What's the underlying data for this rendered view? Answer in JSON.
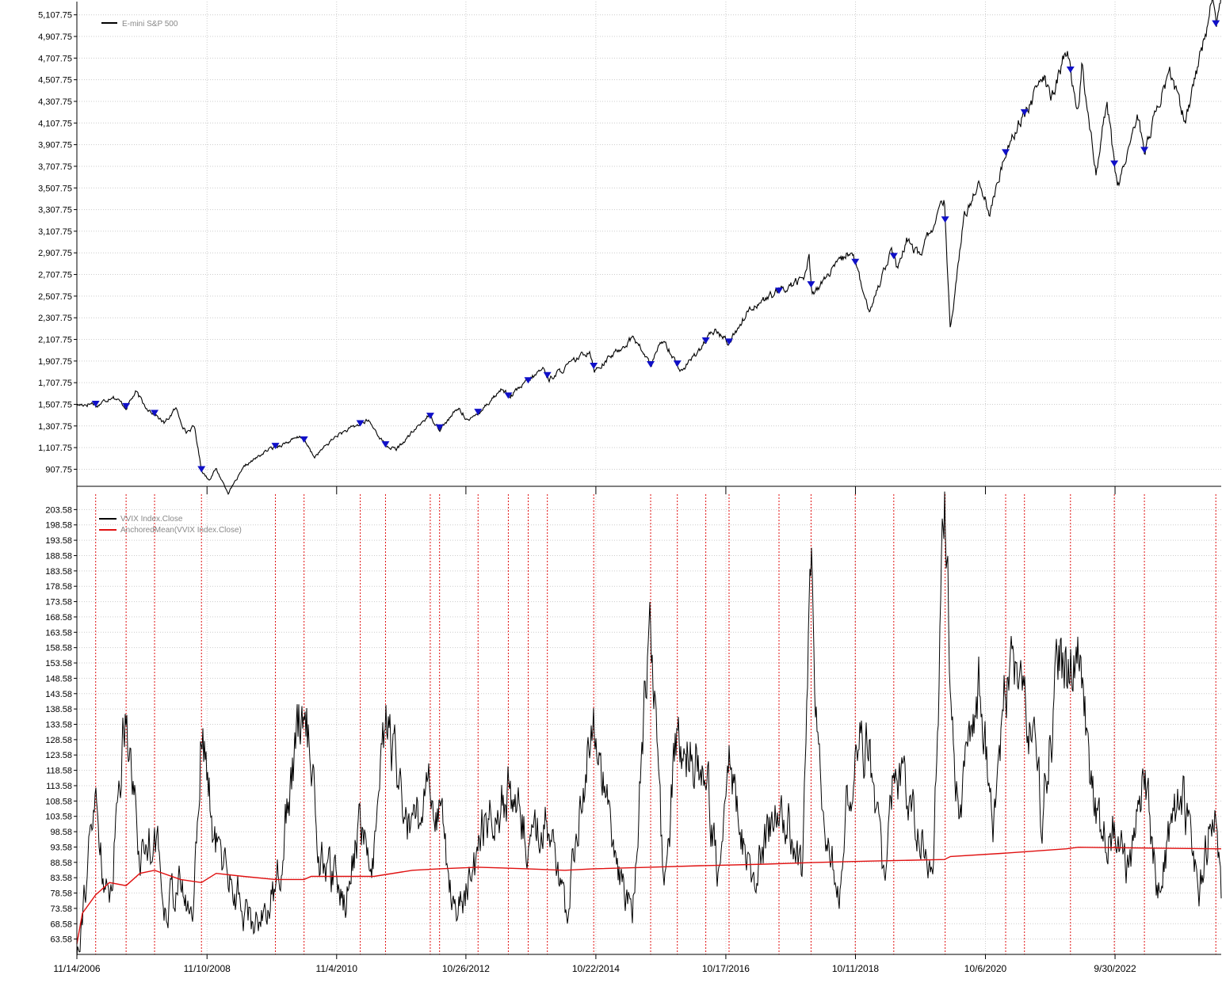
{
  "colors": {
    "price": "#000000",
    "marker": "#1010c8",
    "vvix": "#000000",
    "mean": "#e01010",
    "event_line": "#e01010",
    "grid": "#cccccc"
  },
  "x_axis": {
    "start": "2006-11-14",
    "end": "2024-05-15",
    "tick_dates": [
      "2006-11-14",
      "2008-11-10",
      "2010-11-04",
      "2012-10-26",
      "2014-10-22",
      "2016-10-17",
      "2018-10-11",
      "2020-10-06",
      "2022-09-30"
    ],
    "tick_labels": [
      "11/14/2006",
      "11/10/2008",
      "11/4/2010",
      "10/26/2012",
      "10/22/2014",
      "10/17/2016",
      "10/11/2018",
      "10/6/2020",
      "9/30/2022"
    ]
  },
  "chart_data": [
    {
      "type": "line",
      "legend": [
        "E-mini S&P 500"
      ],
      "ylim": [
        750,
        5230
      ],
      "y_ticks": [
        907.75,
        1107.75,
        1307.75,
        1507.75,
        1707.75,
        1907.75,
        2107.75,
        2307.75,
        2507.75,
        2707.75,
        2907.75,
        3107.75,
        3307.75,
        3507.75,
        3707.75,
        3907.75,
        4107.75,
        4307.75,
        4507.75,
        4707.75,
        4907.75,
        5107.75
      ],
      "y_tick_labels": [
        "907.75",
        "1,107.75",
        "1,307.75",
        "1,507.75",
        "1,707.75",
        "1,907.75",
        "2,107.75",
        "2,307.75",
        "2,507.75",
        "2,707.75",
        "2,907.75",
        "3,107.75",
        "3,307.75",
        "3,507.75",
        "3,707.75",
        "3,907.75",
        "4,107.75",
        "4,307.75",
        "4,507.75",
        "4,707.75",
        "4,907.75",
        "5,107.75"
      ],
      "series": [
        {
          "name": "E-mini S&P 500",
          "points": [
            [
              "2006-11-14",
              1500
            ],
            [
              "2007-02-20",
              1520
            ],
            [
              "2007-03-05",
              1490
            ],
            [
              "2007-06-01",
              1590
            ],
            [
              "2007-08-15",
              1480
            ],
            [
              "2007-10-10",
              1620
            ],
            [
              "2007-11-25",
              1500
            ],
            [
              "2008-01-22",
              1420
            ],
            [
              "2008-03-17",
              1330
            ],
            [
              "2008-05-19",
              1470
            ],
            [
              "2008-07-15",
              1250
            ],
            [
              "2008-09-01",
              1300
            ],
            [
              "2008-10-10",
              900
            ],
            [
              "2008-11-20",
              810
            ],
            [
              "2008-12-30",
              910
            ],
            [
              "2009-03-09",
              690
            ],
            [
              "2009-06-12",
              940
            ],
            [
              "2009-10-20",
              1090
            ],
            [
              "2010-04-23",
              1210
            ],
            [
              "2010-07-02",
              1020
            ],
            [
              "2010-11-04",
              1220
            ],
            [
              "2011-04-29",
              1360
            ],
            [
              "2011-08-08",
              1120
            ],
            [
              "2011-10-04",
              1090
            ],
            [
              "2012-04-02",
              1410
            ],
            [
              "2012-06-04",
              1280
            ],
            [
              "2012-09-14",
              1470
            ],
            [
              "2012-11-15",
              1350
            ],
            [
              "2013-05-21",
              1660
            ],
            [
              "2013-06-24",
              1570
            ],
            [
              "2013-12-31",
              1840
            ],
            [
              "2014-02-03",
              1740
            ],
            [
              "2014-09-18",
              2010
            ],
            [
              "2014-10-15",
              1820
            ],
            [
              "2015-05-21",
              2130
            ],
            [
              "2015-08-24",
              1870
            ],
            [
              "2015-11-03",
              2110
            ],
            [
              "2016-02-11",
              1810
            ],
            [
              "2016-08-15",
              2190
            ],
            [
              "2016-11-04",
              2080
            ],
            [
              "2017-03-01",
              2400
            ],
            [
              "2017-12-29",
              2680
            ],
            [
              "2018-01-26",
              2870
            ],
            [
              "2018-02-08",
              2530
            ],
            [
              "2018-09-20",
              2940
            ],
            [
              "2018-12-24",
              2350
            ],
            [
              "2019-04-30",
              2950
            ],
            [
              "2019-06-03",
              2740
            ],
            [
              "2019-07-26",
              3025
            ],
            [
              "2019-10-03",
              2880
            ],
            [
              "2020-02-19",
              3390
            ],
            [
              "2020-03-23",
              2190
            ],
            [
              "2020-06-08",
              3230
            ],
            [
              "2020-09-02",
              3580
            ],
            [
              "2020-10-30",
              3270
            ],
            [
              "2021-02-12",
              3930
            ],
            [
              "2021-09-02",
              4540
            ],
            [
              "2021-10-04",
              4300
            ],
            [
              "2022-01-03",
              4800
            ],
            [
              "2022-03-08",
              4170
            ],
            [
              "2022-03-29",
              4630
            ],
            [
              "2022-06-16",
              3660
            ],
            [
              "2022-08-16",
              4300
            ],
            [
              "2022-10-12",
              3500
            ],
            [
              "2023-02-02",
              4180
            ],
            [
              "2023-03-13",
              3850
            ],
            [
              "2023-07-31",
              4590
            ],
            [
              "2023-10-27",
              4120
            ],
            [
              "2024-03-28",
              5250
            ],
            [
              "2024-04-19",
              4970
            ],
            [
              "2024-05-15",
              5320
            ]
          ]
        }
      ],
      "marker_dates": [
        "2007-02-27",
        "2007-08-16",
        "2008-01-22",
        "2008-10-10",
        "2009-11-27",
        "2010-05-06",
        "2011-03-16",
        "2011-08-04",
        "2012-04-10",
        "2012-06-01",
        "2013-01-02",
        "2013-06-20",
        "2013-10-09",
        "2014-01-24",
        "2014-10-10",
        "2015-08-24",
        "2016-01-20",
        "2016-06-27",
        "2016-11-04",
        "2017-08-10",
        "2018-02-05",
        "2018-10-10",
        "2019-05-13",
        "2020-02-24",
        "2021-01-27",
        "2021-05-12",
        "2022-01-24",
        "2022-09-26",
        "2023-03-13",
        "2024-04-15"
      ]
    },
    {
      "type": "line",
      "legend": [
        "VVIX Index.Close",
        "AnchoredMean(VVIX Index.Close)"
      ],
      "ylim": [
        58.58,
        208.58
      ],
      "y_ticks": [
        63.58,
        68.58,
        73.58,
        78.58,
        83.58,
        88.58,
        93.58,
        98.58,
        103.58,
        108.58,
        113.58,
        118.58,
        123.58,
        128.58,
        133.58,
        138.58,
        143.58,
        148.58,
        153.58,
        158.58,
        163.58,
        168.58,
        173.58,
        178.58,
        183.58,
        188.58,
        193.58,
        198.58,
        203.58
      ],
      "y_tick_labels": [
        "63.58",
        "68.58",
        "73.58",
        "78.58",
        "83.58",
        "88.58",
        "93.58",
        "98.58",
        "103.58",
        "108.58",
        "113.58",
        "118.58",
        "123.58",
        "128.58",
        "133.58",
        "138.58",
        "143.58",
        "148.58",
        "153.58",
        "158.58",
        "163.58",
        "168.58",
        "173.58",
        "178.58",
        "183.58",
        "188.58",
        "193.58",
        "198.58",
        "203.58"
      ],
      "series": [
        {
          "name": "VVIX Index.Close",
          "points": [
            [
              "2006-11-14",
              60
            ],
            [
              "2007-02-27",
              108
            ],
            [
              "2007-05-10",
              72
            ],
            [
              "2007-08-16",
              143
            ],
            [
              "2007-11-01",
              90
            ],
            [
              "2008-01-22",
              100
            ],
            [
              "2008-03-17",
              75
            ],
            [
              "2008-06-02",
              82
            ],
            [
              "2008-08-20",
              70
            ],
            [
              "2008-10-10",
              135
            ],
            [
              "2008-12-20",
              95
            ],
            [
              "2009-03-10",
              85
            ],
            [
              "2009-07-15",
              68
            ],
            [
              "2009-11-27",
              78
            ],
            [
              "2010-05-06",
              145
            ],
            [
              "2010-08-01",
              90
            ],
            [
              "2010-12-20",
              76
            ],
            [
              "2011-03-16",
              103
            ],
            [
              "2011-05-20",
              82
            ],
            [
              "2011-08-04",
              135
            ],
            [
              "2011-12-20",
              95
            ],
            [
              "2012-04-10",
              112
            ],
            [
              "2012-06-01",
              108
            ],
            [
              "2012-08-15",
              72
            ],
            [
              "2012-12-15",
              85
            ],
            [
              "2013-01-02",
              100
            ],
            [
              "2013-06-20",
              112
            ],
            [
              "2013-10-09",
              95
            ],
            [
              "2014-01-24",
              105
            ],
            [
              "2014-05-15",
              65
            ],
            [
              "2014-07-01",
              100
            ],
            [
              "2014-10-10",
              139
            ],
            [
              "2015-02-10",
              84
            ],
            [
              "2015-05-15",
              75
            ],
            [
              "2015-08-24",
              168
            ],
            [
              "2015-11-03",
              80
            ],
            [
              "2016-01-20",
              131
            ],
            [
              "2016-06-27",
              118
            ],
            [
              "2016-09-15",
              80
            ],
            [
              "2016-11-04",
              120
            ],
            [
              "2017-03-15",
              80
            ],
            [
              "2017-08-10",
              110
            ],
            [
              "2017-12-15",
              85
            ],
            [
              "2018-02-05",
              180
            ],
            [
              "2018-04-15",
              98
            ],
            [
              "2018-07-15",
              82
            ],
            [
              "2018-10-10",
              130
            ],
            [
              "2018-12-24",
              125
            ],
            [
              "2019-03-10",
              86
            ],
            [
              "2019-05-13",
              115
            ],
            [
              "2019-08-15",
              110
            ],
            [
              "2019-12-15",
              84
            ],
            [
              "2020-02-24",
              210
            ],
            [
              "2020-03-25",
              150
            ],
            [
              "2020-05-15",
              105
            ],
            [
              "2020-09-02",
              145
            ],
            [
              "2020-11-15",
              100
            ],
            [
              "2021-01-27",
              152
            ],
            [
              "2021-05-12",
              148
            ],
            [
              "2021-08-15",
              105
            ],
            [
              "2021-12-01",
              157
            ],
            [
              "2022-01-24",
              153
            ],
            [
              "2022-03-08",
              155
            ],
            [
              "2022-05-15",
              118
            ],
            [
              "2022-07-15",
              95
            ],
            [
              "2022-09-26",
              98
            ],
            [
              "2022-12-20",
              82
            ],
            [
              "2023-03-13",
              122
            ],
            [
              "2023-05-20",
              80
            ],
            [
              "2023-08-15",
              100
            ],
            [
              "2023-10-20",
              108
            ],
            [
              "2024-01-15",
              80
            ],
            [
              "2024-04-15",
              110
            ],
            [
              "2024-05-15",
              75
            ]
          ]
        },
        {
          "name": "AnchoredMean(VVIX Index.Close)",
          "points": [
            [
              "2006-11-14",
              62
            ],
            [
              "2006-12-15",
              72
            ],
            [
              "2007-02-27",
              78
            ],
            [
              "2007-05-15",
              82
            ],
            [
              "2007-08-16",
              81
            ],
            [
              "2007-11-01",
              85
            ],
            [
              "2008-01-22",
              86
            ],
            [
              "2008-06-15",
              83
            ],
            [
              "2008-10-10",
              82
            ],
            [
              "2008-12-31",
              85
            ],
            [
              "2009-06-01",
              84
            ],
            [
              "2009-11-27",
              83
            ],
            [
              "2010-05-06",
              83
            ],
            [
              "2010-06-15",
              84
            ],
            [
              "2011-06-01",
              84
            ],
            [
              "2012-01-01",
              86
            ],
            [
              "2012-06-01",
              86.5
            ],
            [
              "2013-01-01",
              87
            ],
            [
              "2013-10-01",
              86.5
            ],
            [
              "2014-05-01",
              86
            ],
            [
              "2014-10-10",
              86.5
            ],
            [
              "2015-08-24",
              87
            ],
            [
              "2016-06-01",
              87.5
            ],
            [
              "2017-06-01",
              88
            ],
            [
              "2018-02-05",
              88.5
            ],
            [
              "2019-01-01",
              89
            ],
            [
              "2020-02-20",
              89.5
            ],
            [
              "2020-03-25",
              90.5
            ],
            [
              "2021-01-01",
              91.5
            ],
            [
              "2022-01-01",
              93
            ],
            [
              "2022-03-08",
              93.5
            ],
            [
              "2023-01-01",
              93.3
            ],
            [
              "2024-05-15",
              93
            ]
          ]
        }
      ],
      "event_dates": [
        "2007-02-27",
        "2007-08-16",
        "2008-01-22",
        "2008-10-10",
        "2009-11-27",
        "2010-05-06",
        "2011-03-16",
        "2011-08-04",
        "2012-04-10",
        "2012-06-01",
        "2013-01-02",
        "2013-06-20",
        "2013-10-09",
        "2014-01-24",
        "2014-10-10",
        "2015-08-24",
        "2016-01-20",
        "2016-06-27",
        "2016-11-04",
        "2017-08-10",
        "2018-02-05",
        "2018-10-10",
        "2019-05-13",
        "2020-02-24",
        "2021-01-27",
        "2021-05-12",
        "2022-01-24",
        "2022-09-26",
        "2023-03-13",
        "2024-04-15"
      ]
    }
  ]
}
